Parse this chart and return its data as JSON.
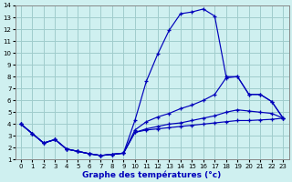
{
  "xlabel": "Graphe des températures (°c)",
  "xlim": [
    -0.5,
    23.5
  ],
  "ylim": [
    1,
    14
  ],
  "xticks": [
    0,
    1,
    2,
    3,
    4,
    5,
    6,
    7,
    8,
    9,
    10,
    11,
    12,
    13,
    14,
    15,
    16,
    17,
    18,
    19,
    20,
    21,
    22,
    23
  ],
  "yticks": [
    1,
    2,
    3,
    4,
    5,
    6,
    7,
    8,
    9,
    10,
    11,
    12,
    13,
    14
  ],
  "bg_color": "#cff0f0",
  "grid_color": "#a0cccc",
  "line_color": "#0000bb",
  "curve1_x": [
    0,
    1,
    2,
    3,
    4,
    5,
    6,
    7,
    8,
    9,
    10,
    11,
    12,
    13,
    14,
    15,
    16,
    17,
    18,
    19,
    20,
    21,
    22,
    23
  ],
  "curve1_y": [
    4.0,
    3.2,
    2.4,
    2.7,
    1.9,
    1.7,
    1.5,
    1.35,
    1.45,
    1.55,
    4.3,
    7.6,
    9.9,
    11.9,
    13.3,
    13.45,
    13.7,
    13.1,
    8.0,
    8.0,
    6.5,
    6.5,
    5.9,
    4.5
  ],
  "curve2_x": [
    0,
    1,
    2,
    3,
    4,
    5,
    6,
    7,
    8,
    9,
    10,
    11,
    12,
    13,
    14,
    15,
    16,
    17,
    18,
    19,
    20,
    21,
    22,
    23
  ],
  "curve2_y": [
    4.0,
    3.2,
    2.4,
    2.7,
    1.9,
    1.7,
    1.5,
    1.35,
    1.45,
    1.55,
    3.3,
    3.5,
    3.6,
    3.7,
    3.8,
    3.9,
    4.0,
    4.1,
    4.2,
    4.3,
    4.3,
    4.35,
    4.4,
    4.5
  ],
  "curve3_x": [
    0,
    1,
    2,
    3,
    4,
    5,
    6,
    7,
    8,
    9,
    10,
    11,
    12,
    13,
    14,
    15,
    16,
    17,
    18,
    19,
    20,
    21,
    22,
    23
  ],
  "curve3_y": [
    4.0,
    3.2,
    2.4,
    2.7,
    1.9,
    1.7,
    1.5,
    1.35,
    1.45,
    1.55,
    3.5,
    4.2,
    4.6,
    4.9,
    5.3,
    5.6,
    6.0,
    6.5,
    7.9,
    8.0,
    6.5,
    6.5,
    5.9,
    4.5
  ],
  "curve4_x": [
    0,
    1,
    2,
    3,
    4,
    5,
    6,
    7,
    8,
    9,
    10,
    11,
    12,
    13,
    14,
    15,
    16,
    17,
    18,
    19,
    20,
    21,
    22,
    23
  ],
  "curve4_y": [
    4.0,
    3.2,
    2.4,
    2.7,
    1.9,
    1.7,
    1.5,
    1.35,
    1.45,
    1.55,
    3.3,
    3.6,
    3.8,
    4.0,
    4.1,
    4.3,
    4.5,
    4.7,
    5.0,
    5.2,
    5.1,
    5.0,
    4.9,
    4.5
  ]
}
